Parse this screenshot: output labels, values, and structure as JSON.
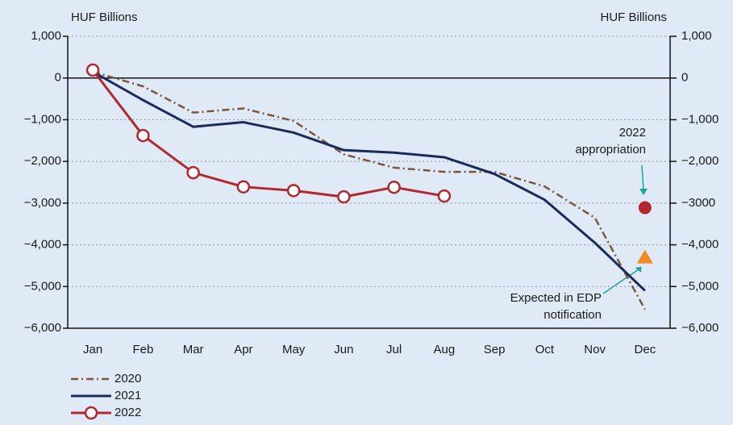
{
  "chart_data": {
    "type": "line",
    "y_label": "HUF Billions",
    "y2_label": "HUF Billions",
    "categories": [
      "Jan",
      "Feb",
      "Mar",
      "Apr",
      "May",
      "Jun",
      "Jul",
      "Aug",
      "Sep",
      "Oct",
      "Nov",
      "Dec"
    ],
    "series": [
      {
        "name": "2020",
        "color": "#7a563a",
        "values": [
          150,
          -200,
          -830,
          -730,
          -1030,
          -1830,
          -2150,
          -2250,
          -2250,
          -2600,
          -3350,
          -5550
        ]
      },
      {
        "name": "2021",
        "color": "#1b2a5a",
        "values": [
          150,
          -530,
          -1170,
          -1060,
          -1310,
          -1730,
          -1790,
          -1900,
          -2300,
          -2920,
          -3950,
          -5100
        ]
      },
      {
        "name": "2022",
        "color": "#b2282d",
        "values": [
          190,
          -1380,
          -2270,
          -2610,
          -2700,
          -2850,
          -2620,
          -2830,
          null,
          null,
          null,
          null
        ]
      }
    ],
    "markers": [
      {
        "label": [
          "2022",
          "appropriation"
        ],
        "value": -3110,
        "color": "#b2282d",
        "shape": "circle"
      },
      {
        "label": [
          "Expected in EDP",
          "notification"
        ],
        "value": -4290,
        "color": "#f08a24",
        "shape": "triangle"
      }
    ],
    "ylim": [
      -6000,
      1000
    ],
    "yticks": [
      {
        "value": 1000,
        "label": "1,000"
      },
      0,
      {
        "value": -1000,
        "label": "−1,000"
      },
      {
        "value": -2000,
        "label": "−2,000"
      },
      {
        "value": -3000,
        "label": "−3,000"
      },
      {
        "value": -4000,
        "label": "−4,000"
      },
      {
        "value": -5000,
        "label": "−5,000"
      },
      {
        "value": -6000,
        "label": "−6,000"
      }
    ],
    "y2lim": [
      -6000,
      1000
    ],
    "y2ticks": [
      {
        "value": 1000,
        "label": "1,000"
      },
      0,
      {
        "value": -1000,
        "label": "−1,000"
      },
      {
        "value": -2000,
        "label": "−2,000"
      },
      {
        "value": -3000,
        "label": "−3000"
      },
      {
        "value": -4000,
        "label": "−4,000"
      },
      {
        "value": -5000,
        "label": "−5,000"
      },
      {
        "value": -6000,
        "label": "−6,000"
      }
    ],
    "grid": true
  }
}
